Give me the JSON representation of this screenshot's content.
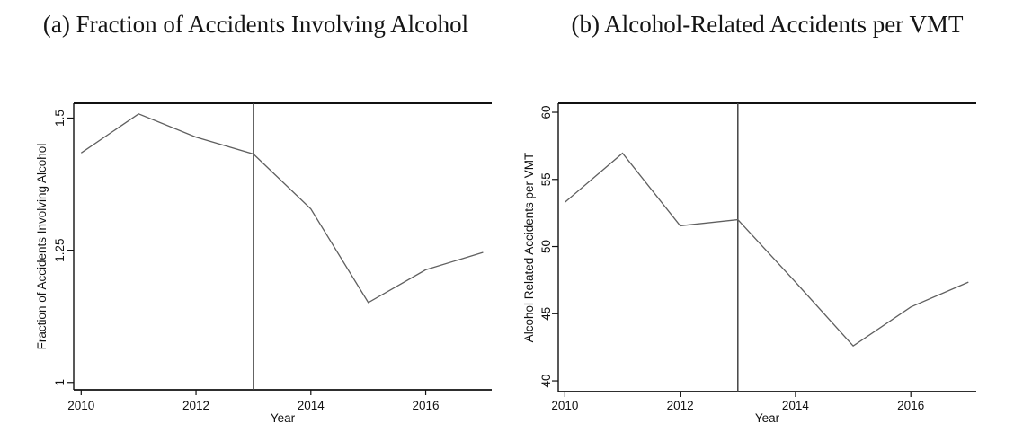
{
  "figure": {
    "background": "#ffffff",
    "text_color": "#141414"
  },
  "chart_data": [
    {
      "type": "line",
      "title": "(a) Fraction of Accidents Involving Alcohol",
      "xlabel": "Year",
      "ylabel": "Fraction of Accidents Involving Alcohol",
      "x": [
        2010,
        2011,
        2012,
        2013,
        2014,
        2015,
        2016,
        2017
      ],
      "values": [
        1.434,
        1.508,
        1.464,
        1.432,
        1.328,
        1.151,
        1.213,
        1.246
      ],
      "xticks": [
        2010,
        2012,
        2014,
        2016
      ],
      "yticks": [
        1,
        1.25,
        1.5
      ],
      "ytick_labels": [
        "1",
        "1.25",
        "1.5"
      ],
      "xlim": [
        2009.87,
        2017.15
      ],
      "ylim": [
        0.986,
        1.528
      ],
      "vline_x": 2013,
      "grid": false,
      "legend": null,
      "line_color": "#5f5f5f",
      "vline_color": "#444444",
      "axis_color": "#111111"
    },
    {
      "type": "line",
      "title": "(b) Alcohol-Related Accidents per VMT",
      "xlabel": "Year",
      "ylabel": "Alcohol Related Accidents per VMT",
      "x": [
        2010,
        2011,
        2012,
        2013,
        2014,
        2015,
        2016,
        2017
      ],
      "values": [
        53.3,
        56.95,
        51.55,
        52.0,
        47.35,
        42.6,
        45.5,
        47.35
      ],
      "xticks": [
        2010,
        2012,
        2014,
        2016
      ],
      "yticks": [
        40,
        45,
        50,
        55,
        60
      ],
      "ytick_labels": [
        "40",
        "45",
        "50",
        "55",
        "60"
      ],
      "xlim": [
        2009.885,
        2017.135
      ],
      "ylim": [
        39.2,
        60.67
      ],
      "vline_x": 2013,
      "grid": false,
      "legend": null,
      "line_color": "#5f5f5f",
      "vline_color": "#444444",
      "axis_color": "#111111"
    }
  ]
}
